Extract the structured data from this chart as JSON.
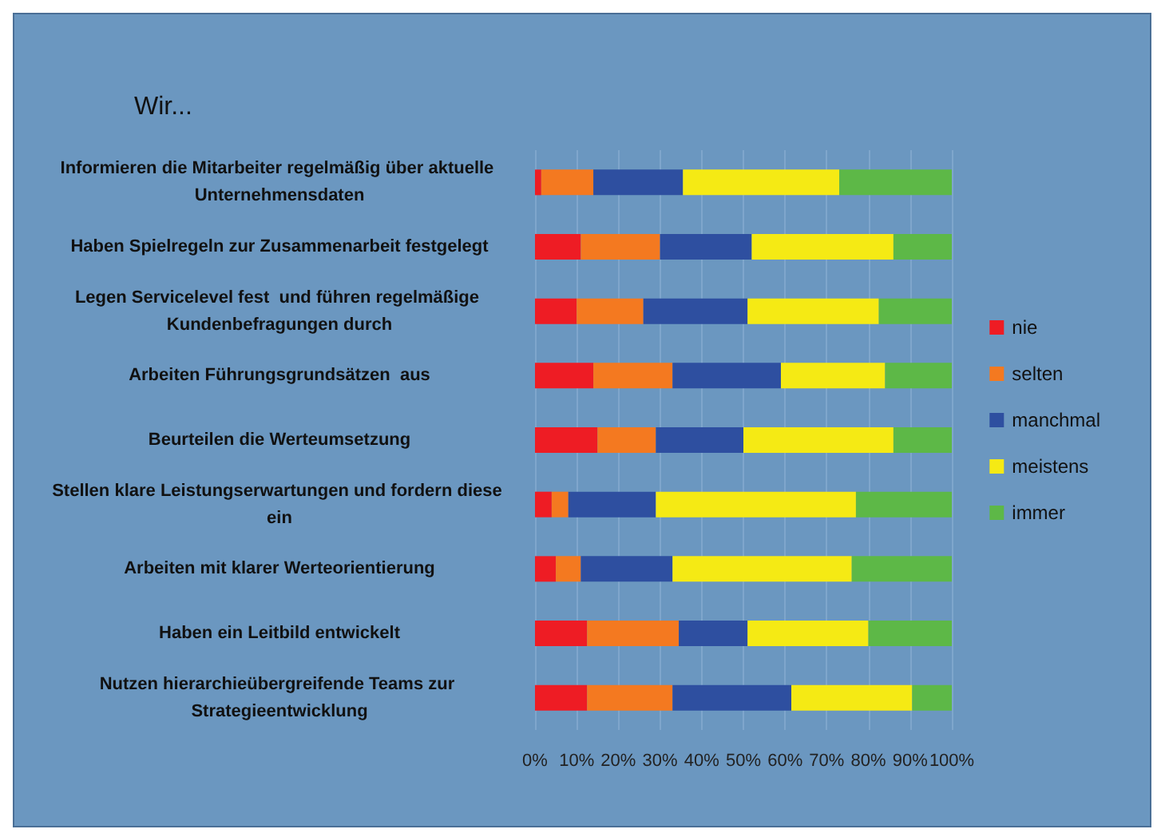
{
  "chart_data": {
    "type": "bar",
    "orientation": "horizontal",
    "stacked": true,
    "title": "Wir...",
    "categories": [
      "Informieren die Mitarbeiter regelmäßig über aktuelle Unternehmensdaten",
      "Haben Spielregeln zur Zusammenarbeit festgelegt",
      "Legen Servicelevel fest  und führen regelmäßige Kundenbefragungen durch",
      "Arbeiten Führungsgrundsätzen  aus",
      "Beurteilen die Werteumsetzung",
      "Stellen klare Leistungserwartungen und fordern diese ein",
      "Arbeiten mit klarer Werteorientierung",
      "Haben ein Leitbild entwickelt",
      "Nutzen hierarchieübergreifende Teams zur Strategieentwicklung"
    ],
    "series": [
      {
        "name": "nie",
        "color": "#ee1c24",
        "values": [
          1.5,
          11,
          10,
          14,
          15,
          4,
          5,
          12.5,
          12.5
        ]
      },
      {
        "name": "selten",
        "color": "#f47920",
        "values": [
          12.5,
          19,
          16,
          19,
          14,
          4,
          6,
          22,
          20.5
        ]
      },
      {
        "name": "manchmal",
        "color": "#2e4fa0",
        "values": [
          21.5,
          22,
          25,
          26,
          21,
          21,
          22,
          16.5,
          28.5
        ]
      },
      {
        "name": "meistens",
        "color": "#f5ea14",
        "values": [
          37.5,
          34,
          31.5,
          25,
          36,
          48,
          43,
          29,
          29
        ]
      },
      {
        "name": "immer",
        "color": "#5db847",
        "values": [
          27,
          14,
          17.5,
          16,
          14,
          23,
          24,
          20,
          9.5
        ]
      }
    ],
    "xlim": [
      0,
      100
    ],
    "xticks": [
      {
        "value": 0,
        "label": "0%"
      },
      {
        "value": 10,
        "label": "10%"
      },
      {
        "value": 20,
        "label": "20%"
      },
      {
        "value": 30,
        "label": "30%"
      },
      {
        "value": 40,
        "label": "40%"
      },
      {
        "value": 50,
        "label": "50%"
      },
      {
        "value": 60,
        "label": "60%"
      },
      {
        "value": 70,
        "label": "70%"
      },
      {
        "value": 80,
        "label": "80%"
      },
      {
        "value": 90,
        "label": "90%"
      },
      {
        "value": 100,
        "label": "100%"
      }
    ],
    "grid": "x",
    "legend": "right"
  }
}
